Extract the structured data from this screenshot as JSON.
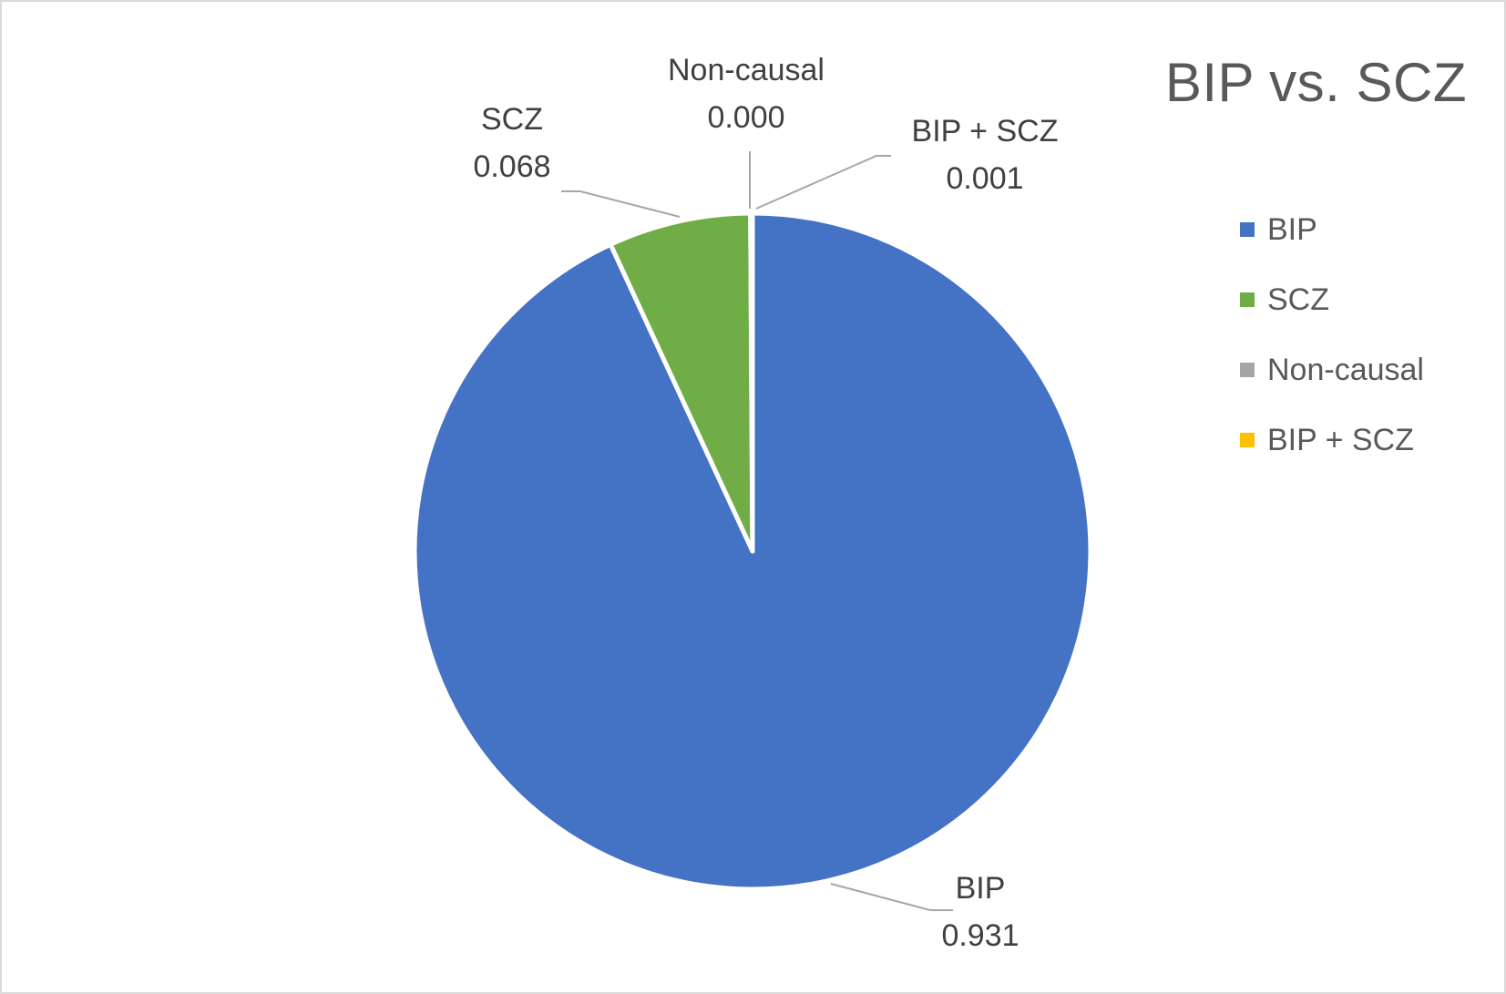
{
  "chart_data": {
    "type": "pie",
    "title": "BIP vs. SCZ",
    "slices": [
      {
        "label": "BIP",
        "value": 0.931,
        "value_label": "0.931",
        "color": "#4472C4"
      },
      {
        "label": "SCZ",
        "value": 0.068,
        "value_label": "0.068",
        "color": "#70AD47"
      },
      {
        "label": "Non-causal",
        "value": 0.0,
        "value_label": "0.000",
        "color": "#A5A5A5"
      },
      {
        "label": "BIP + SCZ",
        "value": 0.001,
        "value_label": "0.001",
        "color": "#FFC000"
      }
    ],
    "legend_position": "right",
    "slice_order": "clockwise from top"
  },
  "legend": {
    "items": [
      {
        "label": "BIP",
        "color": "#4472C4"
      },
      {
        "label": "SCZ",
        "color": "#70AD47"
      },
      {
        "label": "Non-causal",
        "color": "#A5A5A5"
      },
      {
        "label": "BIP + SCZ",
        "color": "#FFC000"
      }
    ]
  }
}
